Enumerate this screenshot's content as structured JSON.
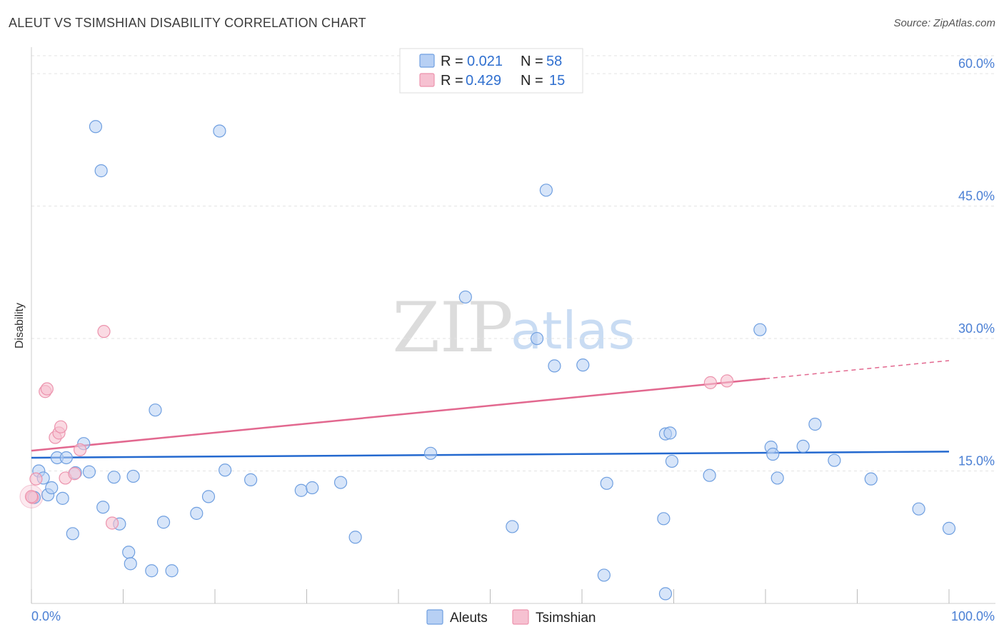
{
  "title": "ALEUT VS TSIMSHIAN DISABILITY CORRELATION CHART",
  "source": "Source: ZipAtlas.com",
  "watermark": {
    "zip": "ZIP",
    "atlas": "atlas"
  },
  "legend_top": [
    {
      "r_label": "R =",
      "r_value": "0.021",
      "n_label": "N =",
      "n_value": "58"
    },
    {
      "r_label": "R =",
      "r_value": "0.429",
      "n_label": "N =",
      "n_value": "15"
    }
  ],
  "chart_data": {
    "type": "scatter",
    "title": "ALEUT VS TSIMSHIAN DISABILITY CORRELATION CHART",
    "xlabel": "",
    "ylabel": "Disability",
    "xlim": [
      0,
      100
    ],
    "ylim": [
      0,
      63
    ],
    "x_tick_labels": [
      "0.0%",
      "100.0%"
    ],
    "y_ticks": [
      15,
      30,
      45,
      60
    ],
    "y_tick_labels": [
      "15.0%",
      "30.0%",
      "45.0%",
      "60.0%"
    ],
    "grid": true,
    "legend_position": "top-center",
    "colors": {
      "aleuts": "#6f9fe0",
      "aleuts_fill": "#b7d0f4",
      "aleuts_line": "#2469cf",
      "tsimshian": "#ec93ad",
      "tsimshian_fill": "#f6c1d1",
      "tsimshian_line": "#e2688f",
      "tick": "#4a7fd4"
    },
    "series": [
      {
        "name": "Aleuts",
        "r": 0.021,
        "n": 58,
        "trend": {
          "x": [
            0,
            100
          ],
          "y": [
            16.5,
            17.2
          ]
        },
        "points": [
          [
            0.3,
            12.0
          ],
          [
            0.8,
            15.0
          ],
          [
            1.3,
            14.2
          ],
          [
            1.8,
            12.3
          ],
          [
            2.2,
            13.1
          ],
          [
            2.8,
            16.5
          ],
          [
            3.4,
            11.9
          ],
          [
            3.8,
            16.5
          ],
          [
            4.5,
            7.9
          ],
          [
            4.8,
            14.8
          ],
          [
            5.7,
            18.1
          ],
          [
            6.3,
            14.9
          ],
          [
            7.0,
            54.0
          ],
          [
            7.6,
            49.0
          ],
          [
            7.8,
            10.9
          ],
          [
            9.0,
            14.3
          ],
          [
            9.6,
            9.0
          ],
          [
            10.6,
            5.8
          ],
          [
            10.8,
            4.5
          ],
          [
            11.1,
            14.4
          ],
          [
            13.1,
            3.7
          ],
          [
            13.5,
            21.9
          ],
          [
            14.4,
            9.2
          ],
          [
            15.3,
            3.7
          ],
          [
            18.0,
            10.2
          ],
          [
            19.3,
            12.1
          ],
          [
            20.5,
            53.5
          ],
          [
            21.1,
            15.1
          ],
          [
            23.9,
            14.0
          ],
          [
            29.4,
            12.8
          ],
          [
            30.6,
            13.1
          ],
          [
            33.7,
            13.7
          ],
          [
            35.3,
            7.5
          ],
          [
            43.5,
            17.0
          ],
          [
            47.3,
            34.7
          ],
          [
            52.4,
            8.7
          ],
          [
            55.1,
            30.0
          ],
          [
            56.1,
            46.8
          ],
          [
            57.0,
            26.9
          ],
          [
            60.1,
            27.0
          ],
          [
            62.4,
            3.2
          ],
          [
            62.7,
            13.6
          ],
          [
            68.9,
            9.6
          ],
          [
            69.1,
            19.2
          ],
          [
            69.6,
            19.3
          ],
          [
            69.8,
            16.1
          ],
          [
            73.9,
            14.5
          ],
          [
            79.4,
            31.0
          ],
          [
            80.6,
            17.7
          ],
          [
            80.8,
            16.9
          ],
          [
            81.3,
            14.2
          ],
          [
            84.1,
            17.8
          ],
          [
            85.4,
            20.3
          ],
          [
            87.5,
            16.2
          ],
          [
            91.5,
            14.1
          ],
          [
            96.7,
            10.7
          ],
          [
            100.0,
            8.5
          ],
          [
            69.1,
            1.1
          ]
        ]
      },
      {
        "name": "Tsimshian",
        "r": 0.429,
        "n": 15,
        "trend": {
          "x": [
            0,
            100
          ],
          "y": [
            17.3,
            27.5
          ],
          "solid_until_x": 80
        },
        "points": [
          [
            0.1,
            12.0
          ],
          [
            0.5,
            14.1
          ],
          [
            1.5,
            24.0
          ],
          [
            1.7,
            24.3
          ],
          [
            2.6,
            18.8
          ],
          [
            3.0,
            19.3
          ],
          [
            3.2,
            20.0
          ],
          [
            3.7,
            14.2
          ],
          [
            4.7,
            14.7
          ],
          [
            5.3,
            17.4
          ],
          [
            7.9,
            30.8
          ],
          [
            8.8,
            9.1
          ],
          [
            74.0,
            25.0
          ],
          [
            75.8,
            25.2
          ],
          [
            0.0,
            12.1
          ]
        ]
      }
    ]
  },
  "legend_bottom": [
    {
      "label": "Aleuts"
    },
    {
      "label": "Tsimshian"
    }
  ]
}
